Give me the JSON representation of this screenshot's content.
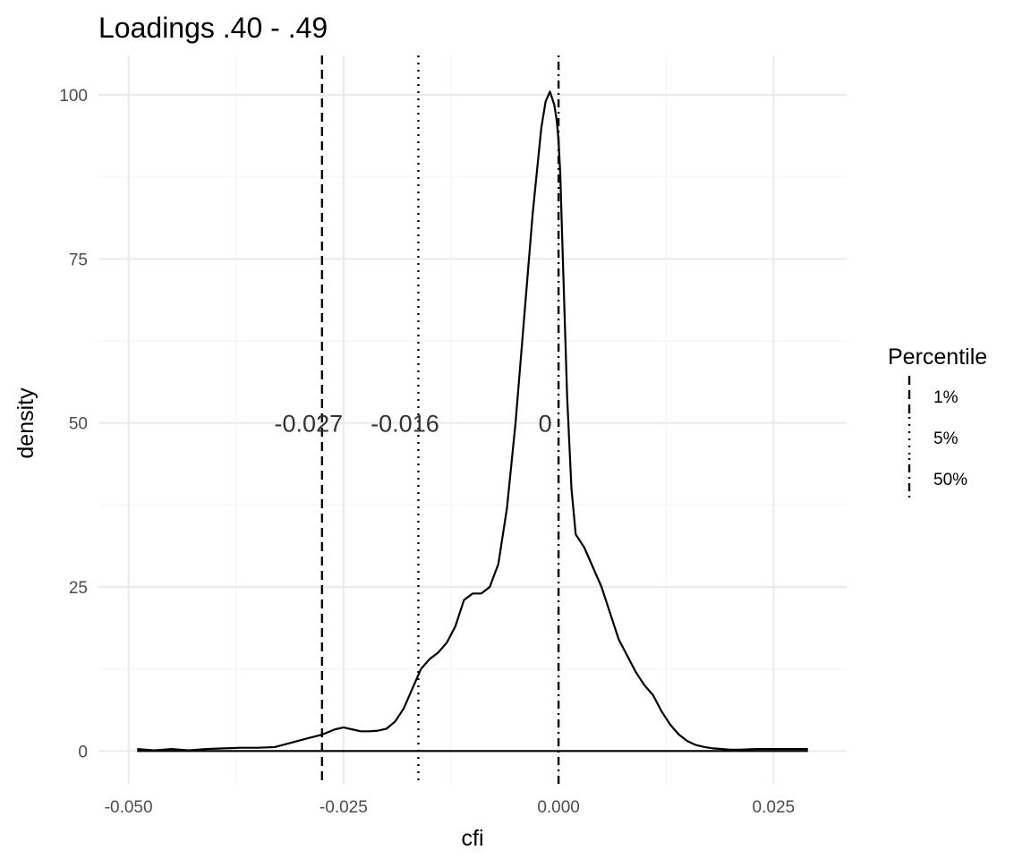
{
  "chart_data": {
    "type": "area",
    "title": "Loadings .40 - .49",
    "xlabel": "cfi",
    "ylabel": "density",
    "xlim": [
      -0.0535,
      0.0335
    ],
    "ylim": [
      -5,
      106
    ],
    "x_ticks": [
      -0.05,
      -0.025,
      0.0,
      0.025
    ],
    "x_tick_labels": [
      "-0.050",
      "-0.025",
      "0.000",
      "0.025"
    ],
    "y_ticks": [
      0,
      25,
      50,
      75,
      100
    ],
    "y_tick_labels": [
      "0",
      "25",
      "50",
      "75",
      "100"
    ],
    "grid": true,
    "density_curve": {
      "x": [
        -0.049,
        -0.047,
        -0.045,
        -0.043,
        -0.041,
        -0.039,
        -0.037,
        -0.035,
        -0.033,
        -0.031,
        -0.029,
        -0.0275,
        -0.026,
        -0.025,
        -0.024,
        -0.023,
        -0.022,
        -0.021,
        -0.02,
        -0.019,
        -0.018,
        -0.017,
        -0.016,
        -0.015,
        -0.014,
        -0.013,
        -0.012,
        -0.011,
        -0.01,
        -0.009,
        -0.008,
        -0.007,
        -0.006,
        -0.005,
        -0.004,
        -0.003,
        -0.002,
        -0.0015,
        -0.001,
        -0.0005,
        -0.0002,
        0.0,
        0.0002,
        0.0005,
        0.001,
        0.0015,
        0.002,
        0.003,
        0.004,
        0.005,
        0.006,
        0.007,
        0.008,
        0.009,
        0.01,
        0.011,
        0.012,
        0.013,
        0.014,
        0.015,
        0.016,
        0.017,
        0.018,
        0.019,
        0.02,
        0.021,
        0.022,
        0.023,
        0.024,
        0.025,
        0.026,
        0.027,
        0.028,
        0.029
      ],
      "y": [
        0.3,
        0.1,
        0.3,
        0.1,
        0.3,
        0.4,
        0.5,
        0.5,
        0.6,
        1.3,
        2.0,
        2.5,
        3.3,
        3.6,
        3.3,
        3.0,
        3.0,
        3.1,
        3.4,
        4.5,
        6.5,
        9.5,
        12.5,
        14.0,
        15.0,
        16.5,
        19.0,
        23.0,
        24.0,
        24.0,
        25.0,
        28.5,
        37.0,
        50.0,
        66.0,
        82.0,
        95.0,
        99.0,
        100.5,
        98.5,
        96.0,
        93.0,
        88.0,
        75.0,
        54.0,
        40.0,
        33.0,
        31.0,
        28.0,
        25.0,
        21.0,
        17.0,
        14.5,
        12.0,
        10.0,
        8.5,
        6.0,
        4.0,
        2.5,
        1.5,
        0.9,
        0.6,
        0.4,
        0.3,
        0.2,
        0.2,
        0.25,
        0.3,
        0.3,
        0.3,
        0.3,
        0.3,
        0.3,
        0.3
      ]
    },
    "percentile_lines": [
      {
        "name": "1%",
        "x": -0.0275,
        "label": "-0.027",
        "style": "dashed"
      },
      {
        "name": "5%",
        "x": -0.0163,
        "label": "-0.016",
        "style": "dotted"
      },
      {
        "name": "50%",
        "x": 0.0,
        "label": "0",
        "style": "dotdash"
      }
    ],
    "annotation_y": 50,
    "legend": {
      "title": "Percentile",
      "placement": "right",
      "entries": [
        "1%",
        "5%",
        "50%"
      ]
    },
    "colors": {
      "line": "#000000",
      "grid_major": "#ebebeb",
      "grid_minor": "#f4f4f4",
      "tick_text": "#4d4d4d",
      "annotation_text": "#333333"
    }
  }
}
